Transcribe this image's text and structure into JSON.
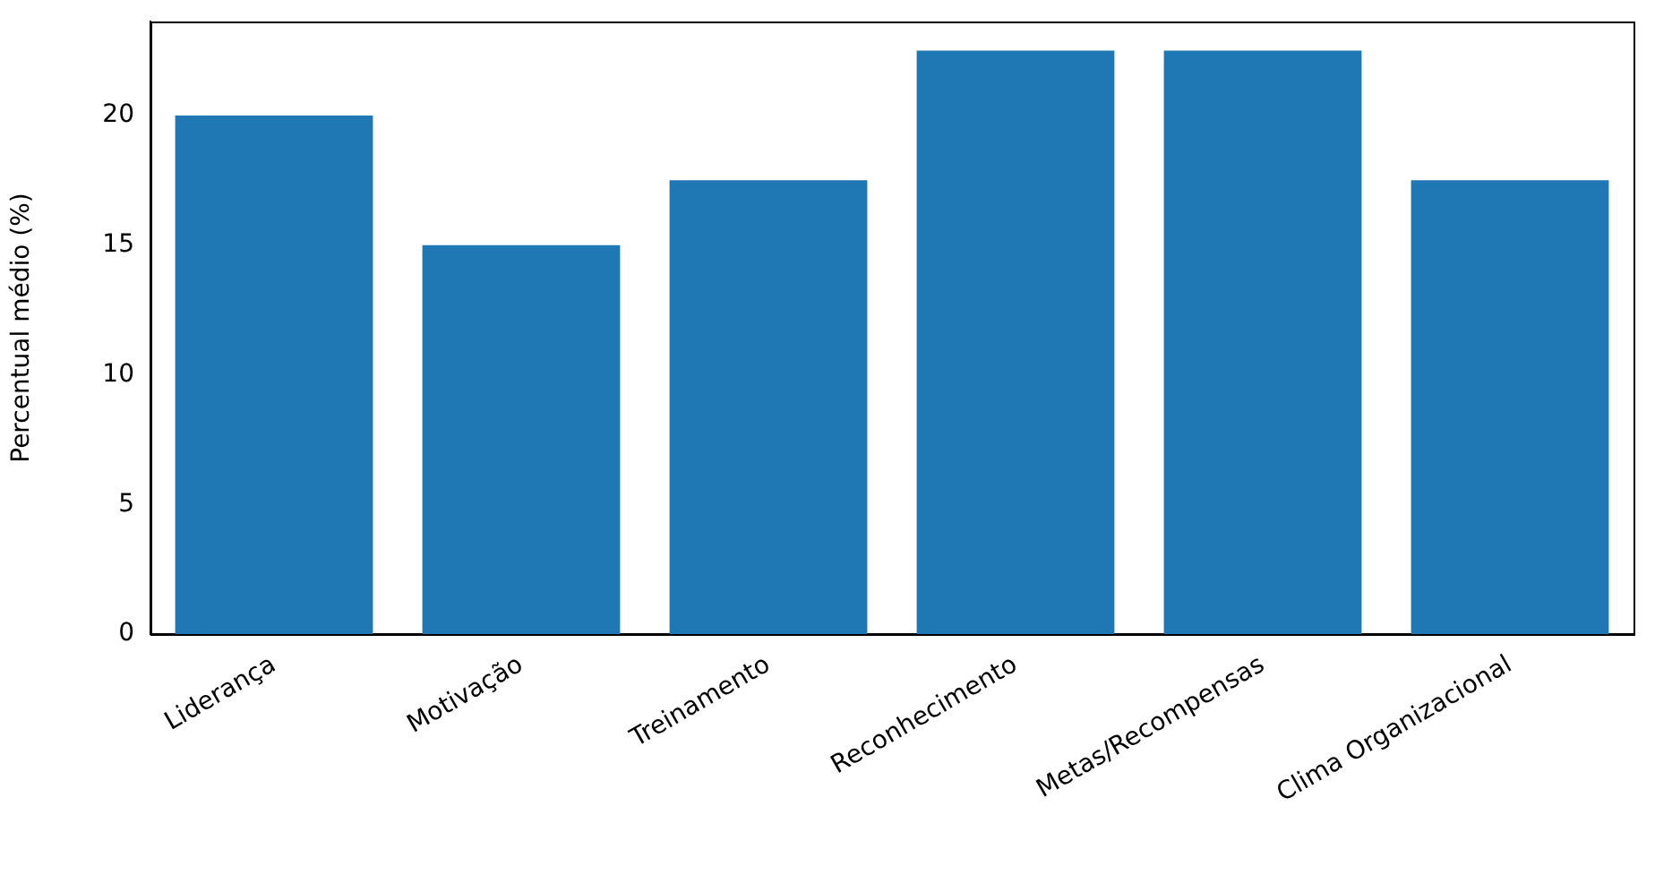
{
  "chart_data": {
    "type": "bar",
    "ylabel": "Percentual médio (%)",
    "categories": [
      "Liderança",
      "Motivação",
      "Treinamento",
      "Reconhecimento",
      "Metas/Recompensas",
      "Clima Organizacional"
    ],
    "values": [
      20,
      15,
      17.5,
      22.5,
      22.5,
      17.5
    ],
    "color": "#1f77b4",
    "ylim": [
      0,
      23.625
    ],
    "yticks": [
      0,
      5,
      10,
      15,
      20
    ],
    "grid": false,
    "legend": false
  }
}
